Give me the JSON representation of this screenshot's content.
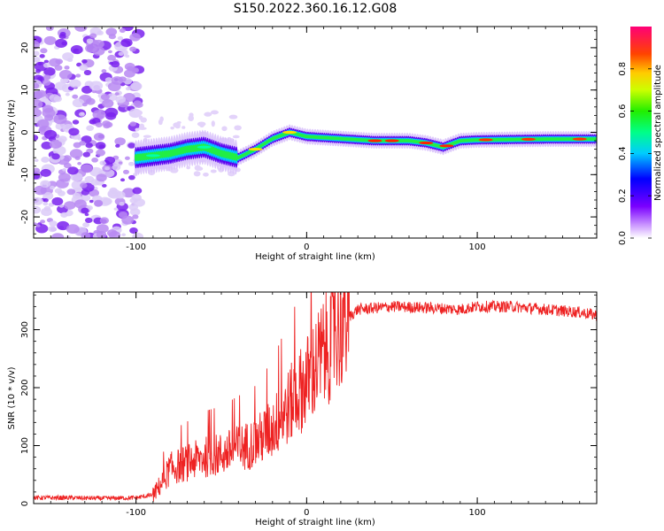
{
  "title": "S150.2022.360.16.12.G08",
  "chart_data": [
    {
      "type": "heatmap",
      "xlabel": "Height of straight line (km)",
      "ylabel": "Frequency (Hz)",
      "xlim": [
        -160,
        170
      ],
      "ylim": [
        -25,
        25
      ],
      "x_ticks": [
        -100,
        0,
        100
      ],
      "y_ticks": [
        -20,
        -10,
        0,
        10,
        20
      ],
      "colorbar": {
        "label": "Normalized spectral amplitude",
        "range": [
          0,
          1
        ],
        "ticks": [
          0.0,
          0.2,
          0.4,
          0.6,
          0.8
        ]
      },
      "ridge": {
        "x": [
          -100,
          -90,
          -80,
          -70,
          -60,
          -50,
          -40,
          -30,
          -20,
          -10,
          0,
          20,
          40,
          60,
          70,
          80,
          90,
          100,
          120,
          140,
          165
        ],
        "y": [
          -6,
          -5.5,
          -5,
          -4,
          -3.5,
          -5,
          -6,
          -4,
          -1.5,
          0,
          -1,
          -1.5,
          -2,
          -2,
          -2.5,
          -3.5,
          -2,
          -1.8,
          -1.7,
          -1.6,
          -1.6
        ]
      },
      "grid": false
    },
    {
      "type": "line",
      "xlabel": "Height of straight line (km)",
      "ylabel": "SNR (10 * v/v)",
      "xlim": [
        -160,
        170
      ],
      "ylim": [
        0,
        365
      ],
      "x_ticks": [
        -100,
        0,
        100
      ],
      "y_ticks": [
        0,
        100,
        200,
        300
      ],
      "color": "#ee2222",
      "series": [
        {
          "x": [
            -160,
            -140,
            -120,
            -100,
            -90,
            -85,
            -80,
            -70,
            -60,
            -50,
            -40,
            -30,
            -20,
            -10,
            0,
            10,
            20,
            30,
            50,
            70,
            90,
            100,
            120,
            140,
            160,
            170
          ],
          "values": [
            10,
            10,
            9,
            10,
            15,
            35,
            60,
            70,
            80,
            85,
            95,
            105,
            130,
            170,
            210,
            260,
            310,
            335,
            340,
            338,
            335,
            340,
            340,
            335,
            330,
            325
          ]
        }
      ],
      "grid": false
    }
  ]
}
